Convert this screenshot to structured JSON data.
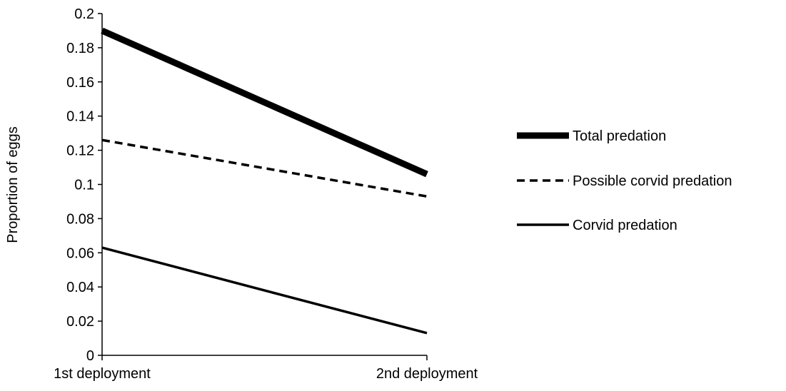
{
  "chart_data": {
    "type": "line",
    "title": "",
    "xlabel": "",
    "ylabel": "Proportion of eggs",
    "categories": [
      "1st deployment",
      "2nd deployment"
    ],
    "ylim": [
      0,
      0.2
    ],
    "yticks": [
      "0",
      "0.02",
      "0.04",
      "0.06",
      "0.08",
      "0.1",
      "0.12",
      "0.14",
      "0.16",
      "0.18",
      "0.2"
    ],
    "grid": false,
    "legend_position": "right",
    "series": [
      {
        "name": "Total predation",
        "values": [
          0.19,
          0.106
        ],
        "color": "#000000",
        "style": "thick"
      },
      {
        "name": "Possible corvid predation",
        "values": [
          0.126,
          0.093
        ],
        "color": "#000000",
        "style": "dashed"
      },
      {
        "name": "Corvid predation",
        "values": [
          0.063,
          0.013
        ],
        "color": "#000000",
        "style": "solid"
      }
    ]
  }
}
